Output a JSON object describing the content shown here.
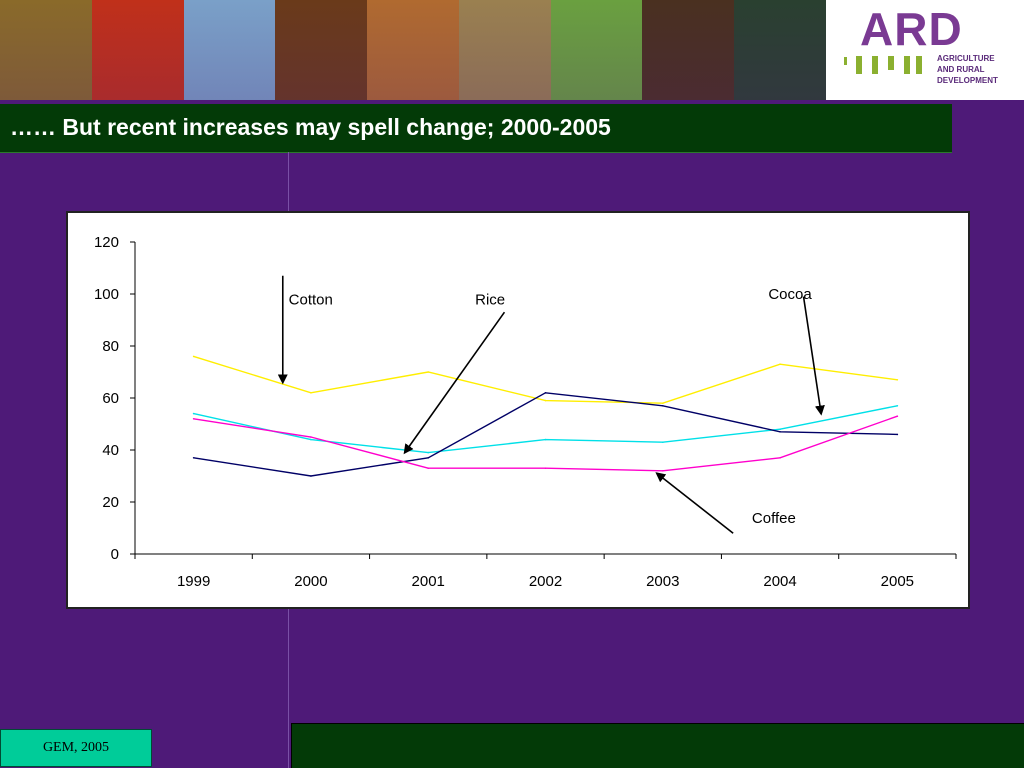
{
  "slide": {
    "title": "…… But recent increases may spell change; 2000-2005",
    "footer": "GEM, 2005",
    "colors": {
      "background": "#4e1a78",
      "title_bar": "#033a07",
      "footer_left": "#00cc99",
      "footer_right": "#033a07"
    }
  },
  "logo": {
    "text": "ARD",
    "subtitle": "AGRICULTURE\nAND RURAL\nDEVELOPMENT",
    "color": "#7a3a93"
  },
  "banner": {
    "description_icons": [
      "photo-strip-icon"
    ],
    "colors": [
      "#8a6a2a",
      "#c0301a",
      "#7aa0c8",
      "#6a3a1a",
      "#b06a30",
      "#9a8050",
      "#6aa040",
      "#4a3020",
      "#2a4030"
    ]
  },
  "chart_data": {
    "type": "line",
    "categories": [
      "1999",
      "2000",
      "2001",
      "2002",
      "2003",
      "2004",
      "2005"
    ],
    "ylim": [
      0,
      120
    ],
    "yticks": [
      0,
      20,
      40,
      60,
      80,
      100,
      120
    ],
    "title": "",
    "xlabel": "",
    "ylabel": "",
    "grid": false,
    "series": [
      {
        "name": "Cotton",
        "color": "#ffee00",
        "values": [
          76,
          62,
          70,
          59,
          58,
          73,
          67
        ]
      },
      {
        "name": "Rice",
        "color": "#00e0e8",
        "values": [
          54,
          44,
          39,
          44,
          43,
          48,
          57
        ]
      },
      {
        "name": "Cocoa",
        "color": "#000066",
        "values": [
          37,
          30,
          37,
          62,
          57,
          47,
          46
        ]
      },
      {
        "name": "Coffee",
        "color": "#ff00cc",
        "values": [
          52,
          45,
          33,
          33,
          32,
          37,
          53
        ]
      }
    ],
    "annotations": [
      {
        "label": "Cotton",
        "series": "Cotton",
        "text_at": [
          1.81,
          96
        ],
        "arrow_from": [
          1.76,
          107
        ],
        "arrow_to": [
          1.76,
          66
        ]
      },
      {
        "label": "Rice",
        "series": "Rice",
        "text_at": [
          3.4,
          96
        ],
        "arrow_from": [
          3.65,
          93
        ],
        "arrow_to": [
          2.8,
          39
        ]
      },
      {
        "label": "Cocoa",
        "series": "Cocoa",
        "text_at": [
          5.9,
          98
        ],
        "arrow_from": [
          6.2,
          99
        ],
        "arrow_to": [
          6.35,
          54
        ]
      },
      {
        "label": "Coffee",
        "series": "Coffee",
        "text_at": [
          5.76,
          12
        ],
        "arrow_from": [
          5.6,
          8
        ],
        "arrow_to": [
          4.95,
          31
        ]
      }
    ]
  }
}
